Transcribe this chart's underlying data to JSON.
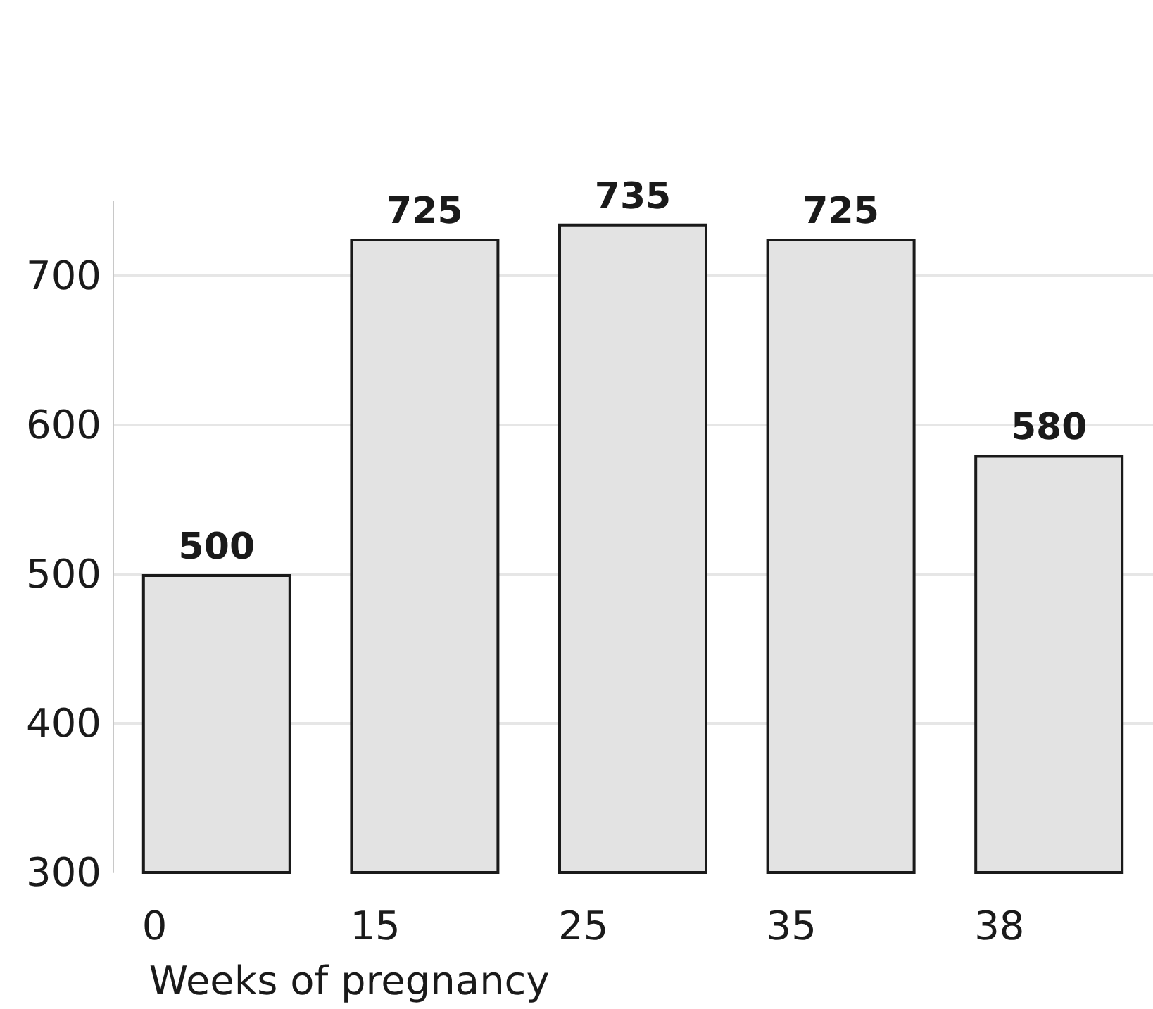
{
  "chart_data": {
    "type": "bar",
    "categories": [
      "0",
      "15",
      "25",
      "35",
      "38"
    ],
    "values": [
      500,
      725,
      735,
      725,
      580
    ],
    "color": "#e3e3e3",
    "xlabel": "Weeks of pregnancy",
    "ylim": [
      300,
      750
    ],
    "yticks": [
      300,
      400,
      500,
      600,
      700
    ],
    "grid": "y",
    "data_labels": true
  }
}
